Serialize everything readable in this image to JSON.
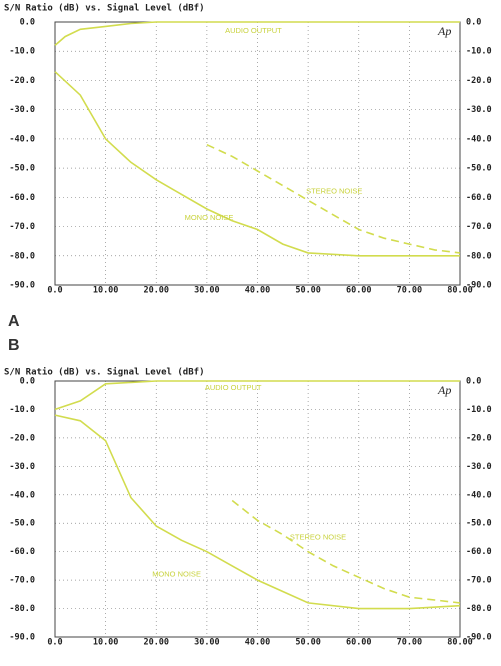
{
  "chart_data": [
    {
      "type": "line",
      "panel": "A",
      "title": "S/N Ratio (dB) vs. Signal Level (dBf)",
      "logo": "Ap",
      "xlim": [
        0,
        80
      ],
      "ylim": [
        -90,
        0
      ],
      "grid": true,
      "xticks": [
        {
          "value": 0,
          "label": "0.0"
        },
        {
          "value": 10,
          "label": "10.00"
        },
        {
          "value": 20,
          "label": "20.00"
        },
        {
          "value": 30,
          "label": "30.00"
        },
        {
          "value": 40,
          "label": "40.00"
        },
        {
          "value": 50,
          "label": "50.00"
        },
        {
          "value": 60,
          "label": "60.00"
        },
        {
          "value": 70,
          "label": "70.00"
        },
        {
          "value": 80,
          "label": "80.00"
        }
      ],
      "yticks": [
        {
          "value": 0,
          "label": "0.0"
        },
        {
          "value": -10,
          "label": "-10.0"
        },
        {
          "value": -20,
          "label": "-20.0"
        },
        {
          "value": -30,
          "label": "-30.0"
        },
        {
          "value": -40,
          "label": "-40.0"
        },
        {
          "value": -50,
          "label": "-50.0"
        },
        {
          "value": -60,
          "label": "-60.0"
        },
        {
          "value": -70,
          "label": "-70.0"
        },
        {
          "value": -80,
          "label": "-80.0"
        },
        {
          "value": -90,
          "label": "-90.0"
        }
      ],
      "series": [
        {
          "name": "AUDIO OUTPUT",
          "color": "#d2dc4e",
          "dashed": false,
          "x": [
            0,
            2,
            5,
            10,
            15,
            20,
            30,
            80
          ],
          "values": [
            -8,
            -5,
            -2.5,
            -1.5,
            -0.5,
            0,
            0,
            0
          ]
        },
        {
          "name": "STEREO NOISE",
          "color": "#d2dc4e",
          "dashed": true,
          "x": [
            30,
            35,
            40,
            45,
            50,
            55,
            60,
            65,
            70,
            75,
            80
          ],
          "values": [
            -42,
            -46,
            -51,
            -56,
            -61,
            -66,
            -71,
            -74,
            -76,
            -78,
            -79
          ]
        },
        {
          "name": "MONO NOISE",
          "color": "#d2dc4e",
          "dashed": false,
          "x": [
            0,
            5,
            10,
            15,
            20,
            25,
            30,
            35,
            40,
            45,
            50,
            60,
            70,
            80
          ],
          "values": [
            -17,
            -25,
            -40,
            -48,
            -54,
            -59,
            -64,
            -68,
            -71,
            -76,
            -79,
            -80,
            -80,
            -80
          ]
        }
      ]
    },
    {
      "type": "line",
      "panel": "B",
      "title": "S/N Ratio (dB) vs. Signal Level (dBf)",
      "logo": "Ap",
      "xlim": [
        0,
        80
      ],
      "ylim": [
        -90,
        0
      ],
      "grid": true,
      "xticks": [
        {
          "value": 0,
          "label": "0.0"
        },
        {
          "value": 10,
          "label": "10.00"
        },
        {
          "value": 20,
          "label": "20.00"
        },
        {
          "value": 30,
          "label": "30.00"
        },
        {
          "value": 40,
          "label": "40.00"
        },
        {
          "value": 50,
          "label": "50.00"
        },
        {
          "value": 60,
          "label": "60.00"
        },
        {
          "value": 70,
          "label": "70.00"
        },
        {
          "value": 80,
          "label": "80.00"
        }
      ],
      "yticks": [
        {
          "value": 0,
          "label": "0.0"
        },
        {
          "value": -10,
          "label": "-10.0"
        },
        {
          "value": -20,
          "label": "-20.0"
        },
        {
          "value": -30,
          "label": "-30.0"
        },
        {
          "value": -40,
          "label": "-40.0"
        },
        {
          "value": -50,
          "label": "-50.0"
        },
        {
          "value": -60,
          "label": "-60.0"
        },
        {
          "value": -70,
          "label": "-70.0"
        },
        {
          "value": -80,
          "label": "-80.0"
        },
        {
          "value": -90,
          "label": "-90.0"
        }
      ],
      "series": [
        {
          "name": "AUDIO OUTPUT",
          "color": "#d2dc4e",
          "dashed": false,
          "x": [
            0,
            5,
            10,
            15,
            20,
            80
          ],
          "values": [
            -10,
            -7,
            -1,
            -0.5,
            0,
            0
          ]
        },
        {
          "name": "STEREO NOISE",
          "color": "#d2dc4e",
          "dashed": true,
          "x": [
            35,
            40,
            45,
            50,
            55,
            60,
            65,
            70,
            75,
            80
          ],
          "values": [
            -42,
            -49,
            -54,
            -60,
            -65,
            -69,
            -73,
            -76,
            -77,
            -78
          ]
        },
        {
          "name": "MONO NOISE",
          "color": "#d2dc4e",
          "dashed": false,
          "x": [
            0,
            5,
            10,
            15,
            20,
            25,
            30,
            35,
            40,
            45,
            50,
            60,
            70,
            80
          ],
          "values": [
            -12,
            -14,
            -21,
            -41,
            -51,
            -56,
            -60,
            -65,
            -70,
            -74,
            -78,
            -80,
            -80,
            -79
          ]
        }
      ]
    }
  ]
}
